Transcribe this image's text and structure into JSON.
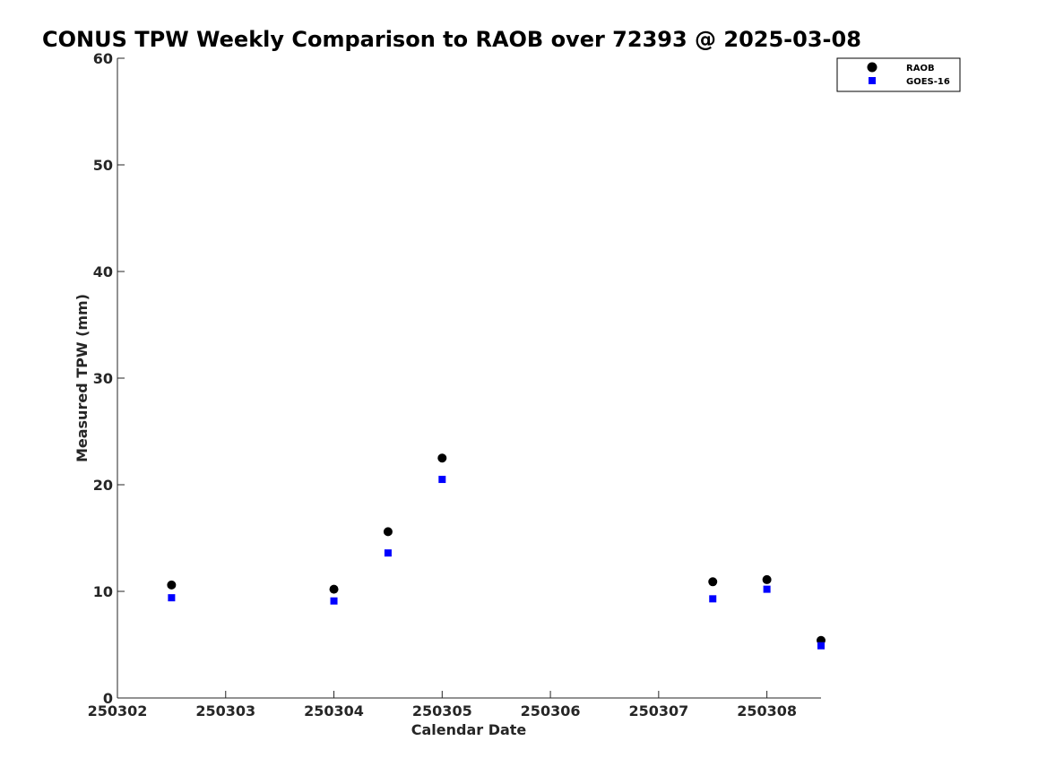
{
  "chart_data": {
    "type": "scatter",
    "title": "CONUS TPW Weekly Comparison to RAOB over 72393 @ 2025-03-08",
    "xlabel": "Calendar Date",
    "ylabel": "Measured TPW (mm)",
    "xlim": [
      250302,
      250308.5
    ],
    "ylim": [
      0,
      60
    ],
    "xticks": [
      250302,
      250303,
      250304,
      250305,
      250306,
      250307,
      250308
    ],
    "xtick_labels": [
      "250302",
      "250303",
      "250304",
      "250305",
      "250306",
      "250307",
      "250308"
    ],
    "yticks": [
      0,
      10,
      20,
      30,
      40,
      50,
      60
    ],
    "ytick_labels": [
      "0",
      "10",
      "20",
      "30",
      "40",
      "50",
      "60"
    ],
    "grid": false,
    "legend_position": "top-right",
    "series": [
      {
        "name": "RAOB",
        "marker": "circle",
        "color": "#000000",
        "x": [
          250302.5,
          250304.0,
          250304.5,
          250305.0,
          250307.5,
          250308.0,
          250308.5
        ],
        "y": [
          10.6,
          10.2,
          15.6,
          22.5,
          10.9,
          11.1,
          5.4
        ]
      },
      {
        "name": "GOES-16",
        "marker": "square",
        "color": "#0000ff",
        "x": [
          250302.5,
          250304.0,
          250304.5,
          250305.0,
          250307.5,
          250308.0,
          250308.5
        ],
        "y": [
          9.4,
          9.1,
          13.6,
          20.5,
          9.3,
          10.2,
          4.9
        ]
      }
    ]
  }
}
